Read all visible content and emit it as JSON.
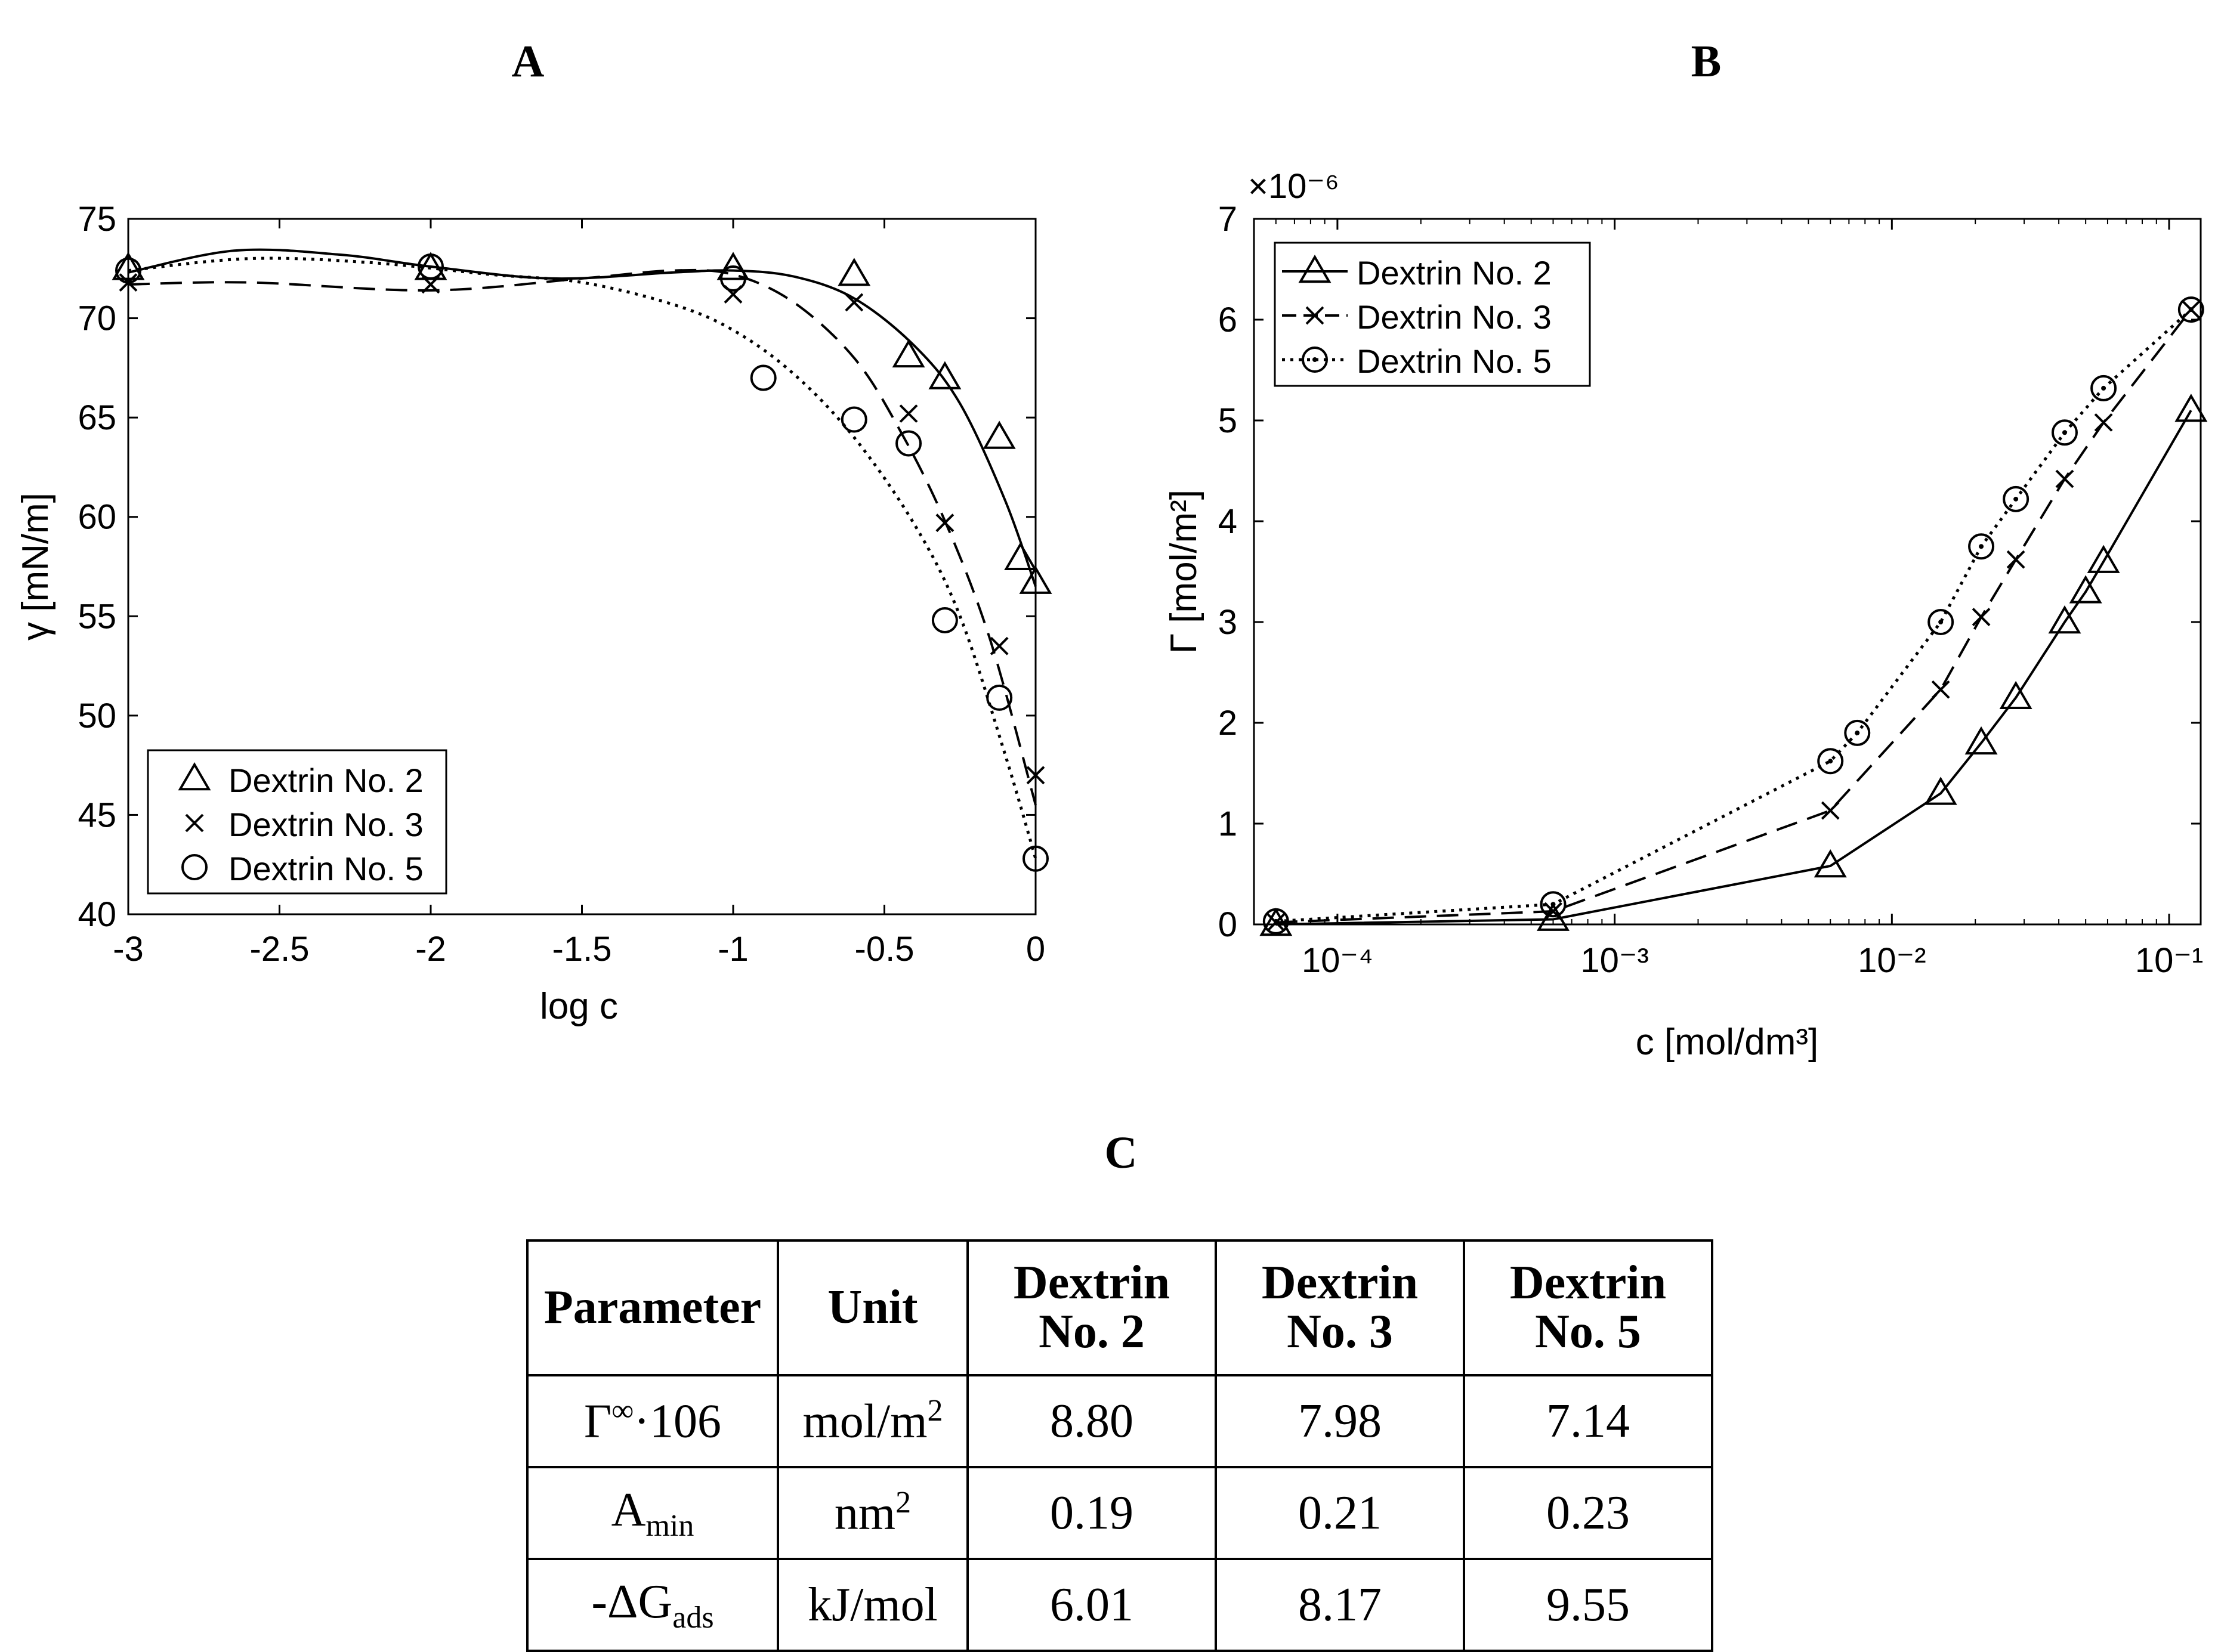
{
  "panel_labels": {
    "a": "A",
    "b": "B",
    "c": "C"
  },
  "chart_data": [
    {
      "type": "scatter",
      "panel": "A",
      "xlabel": "log c",
      "ylabel": "γ [mN/m]",
      "xlim": [
        -3,
        0
      ],
      "ylim": [
        40,
        75
      ],
      "xticks": [
        -3,
        -2.5,
        -2,
        -1.5,
        -1,
        -0.5,
        0
      ],
      "yticks": [
        40,
        45,
        50,
        55,
        60,
        65,
        70,
        75
      ],
      "xtick_labels": [
        "-3",
        "-2.5",
        "-2",
        "-1.5",
        "-1",
        "-0.5",
        "0"
      ],
      "ytick_labels": [
        "40",
        "45",
        "50",
        "55",
        "60",
        "65",
        "70",
        "75"
      ],
      "legend_position": "bottom-left",
      "series": [
        {
          "name": "Dextrin No. 2",
          "marker": "triangle",
          "line": "solid",
          "x": [
            -3,
            -2,
            -1,
            -0.6,
            -0.42,
            -0.3,
            -0.12,
            -0.05,
            0
          ],
          "y": [
            72.5,
            72.5,
            72.5,
            72.2,
            68.1,
            67.0,
            64.0,
            57.9,
            56.7
          ],
          "fit_x": [
            -3,
            -2.65,
            -2.3,
            -2,
            -1.6,
            -1.2,
            -1,
            -0.8,
            -0.6,
            -0.4,
            -0.25,
            -0.1,
            0
          ],
          "fit_y": [
            72.3,
            73.4,
            73.2,
            72.6,
            72.0,
            72.3,
            72.4,
            72.1,
            71.0,
            68.6,
            65.7,
            60.8,
            56.5
          ]
        },
        {
          "name": "Dextrin No. 3",
          "marker": "x",
          "line": "dashed",
          "x": [
            -3,
            -2,
            -1,
            -0.6,
            -0.42,
            -0.3,
            -0.12,
            0
          ],
          "y": [
            71.8,
            71.7,
            71.2,
            70.8,
            65.2,
            59.7,
            53.5,
            47.0
          ],
          "fit_x": [
            -3,
            -2.6,
            -2,
            -1.5,
            -1.2,
            -1,
            -0.8,
            -0.6,
            -0.45,
            -0.3,
            -0.15,
            0
          ],
          "fit_y": [
            71.7,
            71.8,
            71.4,
            72.0,
            72.4,
            72.2,
            70.8,
            68.0,
            64.4,
            59.8,
            53.8,
            45.5
          ]
        },
        {
          "name": "Dextrin No. 5",
          "marker": "circle",
          "line": "dotted",
          "x": [
            -3,
            -2,
            -1,
            -0.9,
            -0.6,
            -0.42,
            -0.3,
            -0.12,
            0
          ],
          "y": [
            72.4,
            72.6,
            72.0,
            67.0,
            64.9,
            63.7,
            54.8,
            50.9,
            42.8
          ],
          "fit_x": [
            -3,
            -2.6,
            -2.2,
            -1.8,
            -1.5,
            -1.2,
            -1,
            -0.8,
            -0.6,
            -0.4,
            -0.25,
            -0.1,
            0
          ],
          "fit_y": [
            72.4,
            73.0,
            72.8,
            72.2,
            71.8,
            70.7,
            69.4,
            67.2,
            64.0,
            59.6,
            55.0,
            48.0,
            42.8
          ]
        }
      ]
    },
    {
      "type": "line",
      "panel": "B",
      "xscale": "log",
      "xlabel": "c [mol/dm³]",
      "ylabel": "Γ [mol/m²]",
      "y_multiplier": "×10⁻⁶",
      "xlim": [
        5e-05,
        0.13
      ],
      "ylim": [
        0,
        7
      ],
      "xticks": [
        0.0001,
        0.001,
        0.01,
        0.1
      ],
      "yticks": [
        0,
        1,
        2,
        3,
        4,
        5,
        6,
        7
      ],
      "xtick_labels": [
        "10⁻⁴",
        "10⁻³",
        "10⁻²",
        "10⁻¹"
      ],
      "ytick_labels": [
        "0",
        "1",
        "2",
        "3",
        "4",
        "5",
        "6",
        "7"
      ],
      "legend_position": "top-left",
      "series": [
        {
          "name": "Dextrin No. 2",
          "marker": "triangle",
          "line": "solid",
          "x": [
            6e-05,
            0.0006,
            0.006,
            0.015,
            0.021,
            0.028,
            0.042,
            0.05,
            0.058,
            0.12
          ],
          "y": [
            0.0,
            0.05,
            0.58,
            1.3,
            1.8,
            2.25,
            3.0,
            3.3,
            3.6,
            5.1
          ]
        },
        {
          "name": "Dextrin No. 3",
          "marker": "x",
          "line": "dashed",
          "x": [
            6e-05,
            0.0006,
            0.006,
            0.015,
            0.021,
            0.028,
            0.042,
            0.058,
            0.12
          ],
          "y": [
            0.02,
            0.13,
            1.13,
            2.33,
            3.05,
            3.62,
            4.42,
            4.98,
            6.1
          ]
        },
        {
          "name": "Dextrin No. 5",
          "marker": "circle",
          "line": "dotted",
          "x": [
            6e-05,
            0.0006,
            0.006,
            0.0075,
            0.015,
            0.021,
            0.028,
            0.042,
            0.058,
            0.12
          ],
          "y": [
            0.03,
            0.2,
            1.62,
            1.9,
            3.0,
            3.75,
            4.22,
            4.88,
            5.32,
            6.1
          ]
        }
      ]
    },
    {
      "type": "table",
      "panel": "C",
      "headers": [
        "Parameter",
        "Unit",
        "Dextrin No. 2",
        "Dextrin No. 3",
        "Dextrin No. 5"
      ],
      "rows": [
        {
          "param": "Γ",
          "param_sup": "∞",
          "param_tail": "·106",
          "unit": "mol/m",
          "unit_sup": "2",
          "values": [
            "8.80",
            "7.98",
            "7.14"
          ]
        },
        {
          "param": "A",
          "param_sub": "min",
          "unit": "nm",
          "unit_sup": "2",
          "values": [
            "0.19",
            "0.21",
            "0.23"
          ]
        },
        {
          "param": "-ΔG",
          "param_sub": "ads",
          "unit": "kJ/mol",
          "values": [
            "6.01",
            "8.17",
            "9.55"
          ]
        }
      ]
    }
  ]
}
